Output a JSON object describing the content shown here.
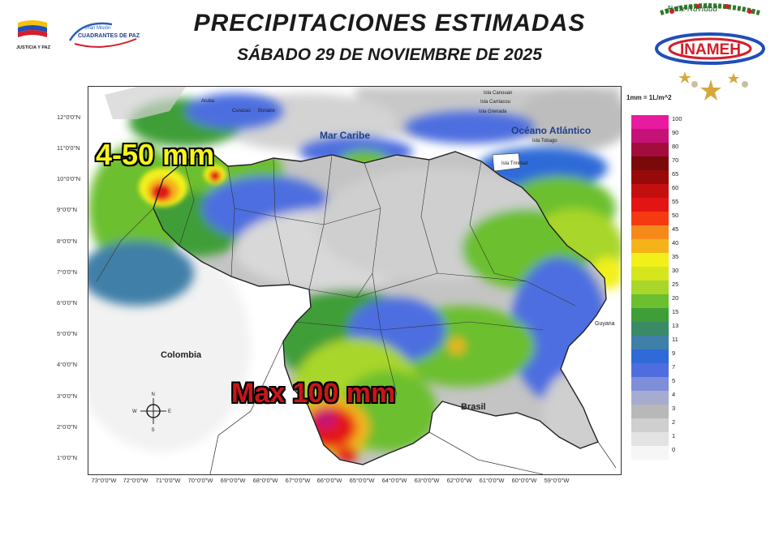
{
  "header": {
    "title": "PRECIPITACIONES ESTIMADAS",
    "date": "SÁBADO 29 DE NOVIEMBRE  DE 2025"
  },
  "logos": {
    "government": "JUSTICIA Y PAZ",
    "mission_top": "Gran Misión",
    "mission_name": "CUADRANTES DE PAZ",
    "institute": "INAMEH",
    "greeting": "Feliz Navidad"
  },
  "map": {
    "y_ticks": [
      "12°0'0\"N",
      "11°0'0\"N",
      "10°0'0\"N",
      "9°0'0\"N",
      "8°0'0\"N",
      "7°0'0\"N",
      "6°0'0\"N",
      "5°0'0\"N",
      "4°0'0\"N",
      "3°0'0\"N",
      "2°0'0\"N",
      "1°0'0\"N"
    ],
    "x_ticks": [
      "73°0'0\"W",
      "72°0'0\"W",
      "71°0'0\"W",
      "70°0'0\"W",
      "69°0'0\"W",
      "68°0'0\"W",
      "67°0'0\"W",
      "66°0'0\"W",
      "65°0'0\"W",
      "64°0'0\"W",
      "63°0'0\"W",
      "62°0'0\"W",
      "61°0'0\"W",
      "60°0'0\"W",
      "59°0'0\"W"
    ],
    "places": {
      "mar_caribe": "Mar Caribe",
      "oceano_atlantico": "Océano Atlántico",
      "colombia": "Colombia",
      "brasil": "Brasil",
      "guyana": "Guyana",
      "aruba": "Aruba",
      "curazao": "Curazao",
      "bonaire": "Bonaire",
      "canouan": "Isla Canouan",
      "carriacou": "Isla Carriacou",
      "grenada": "Isla Grenada",
      "tobago": "Isla Tobago",
      "trinidad": "Isla Trinidad"
    },
    "annotations": {
      "northwest": "4-50 mm",
      "south": "Max 100  mm"
    },
    "compass": {
      "n": "N",
      "s": "S",
      "e": "E",
      "w": "W"
    }
  },
  "legend": {
    "unit": "1mm = 1L/m^2",
    "items": [
      {
        "value": "100",
        "color": "#e81aa0"
      },
      {
        "value": "90",
        "color": "#c41277"
      },
      {
        "value": "80",
        "color": "#a30d3d"
      },
      {
        "value": "70",
        "color": "#7a0a0a"
      },
      {
        "value": "65",
        "color": "#980a0a"
      },
      {
        "value": "60",
        "color": "#c40f0f"
      },
      {
        "value": "55",
        "color": "#e31414"
      },
      {
        "value": "50",
        "color": "#f53a12"
      },
      {
        "value": "45",
        "color": "#f58a1a"
      },
      {
        "value": "40",
        "color": "#f5b31a"
      },
      {
        "value": "35",
        "color": "#f2f01a"
      },
      {
        "value": "30",
        "color": "#d6e61c"
      },
      {
        "value": "25",
        "color": "#a8d62a"
      },
      {
        "value": "20",
        "color": "#6cbf2e"
      },
      {
        "value": "15",
        "color": "#3f9e38"
      },
      {
        "value": "13",
        "color": "#3a8a66"
      },
      {
        "value": "11",
        "color": "#3f7fa8"
      },
      {
        "value": "9",
        "color": "#2f6ad8"
      },
      {
        "value": "7",
        "color": "#4e6ee0"
      },
      {
        "value": "5",
        "color": "#7e8ed8"
      },
      {
        "value": "4",
        "color": "#a6acd0"
      },
      {
        "value": "3",
        "color": "#b8b8b8"
      },
      {
        "value": "2",
        "color": "#cfcfcf"
      },
      {
        "value": "1",
        "color": "#e3e3e3"
      },
      {
        "value": "0",
        "color": "#f6f6f6"
      }
    ]
  }
}
